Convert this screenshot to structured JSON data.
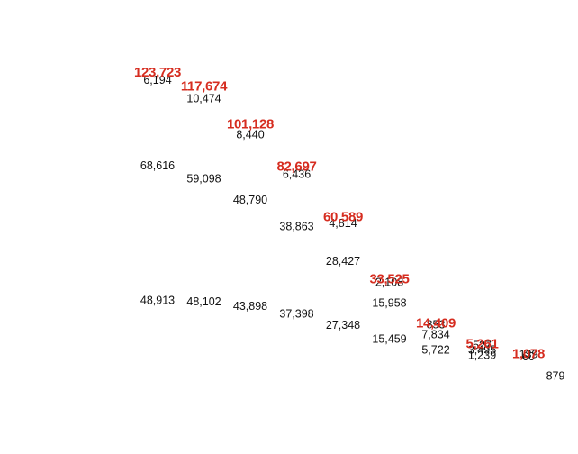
{
  "chart_data": {
    "type": "bar",
    "subtype": "stacked",
    "title": "",
    "xlabel": "",
    "ylabel": "",
    "ylim": [
      0,
      130000
    ],
    "grid": false,
    "legend": "none",
    "visible_bars": false,
    "colors": {
      "total_label": "#d62d20",
      "segment_label": "#111111"
    },
    "columns": [
      {
        "total": "123,723",
        "total_value": 123723,
        "segments": [
          {
            "label": "48,913",
            "value": 48913
          },
          {
            "label": "68,616",
            "value": 68616
          },
          {
            "label": "6,194",
            "value": 6194
          }
        ]
      },
      {
        "total": "117,674",
        "total_value": 117674,
        "segments": [
          {
            "label": "48,102",
            "value": 48102
          },
          {
            "label": "59,098",
            "value": 59098
          },
          {
            "label": "10,474",
            "value": 10474
          }
        ]
      },
      {
        "total": "101,128",
        "total_value": 101128,
        "segments": [
          {
            "label": "43,898",
            "value": 43898
          },
          {
            "label": "48,790",
            "value": 48790
          },
          {
            "label": "8,440",
            "value": 8440
          }
        ]
      },
      {
        "total": "82,697",
        "total_value": 82697,
        "segments": [
          {
            "label": "37,398",
            "value": 37398
          },
          {
            "label": "38,863",
            "value": 38863
          },
          {
            "label": "6,436",
            "value": 6436
          }
        ]
      },
      {
        "total": "60,589",
        "total_value": 60589,
        "segments": [
          {
            "label": "27,348",
            "value": 27348
          },
          {
            "label": "28,427",
            "value": 28427
          },
          {
            "label": "4,814",
            "value": 4814
          }
        ]
      },
      {
        "total": "33,525",
        "total_value": 33525,
        "segments": [
          {
            "label": "15,459",
            "value": 15459
          },
          {
            "label": "15,958",
            "value": 15958
          },
          {
            "label": "2,108",
            "value": 2108
          }
        ]
      },
      {
        "total": "14,409",
        "total_value": 14409,
        "segments": [
          {
            "label": "5,722",
            "value": 5722
          },
          {
            "label": "7,834",
            "value": 7834
          },
          {
            "label": "853",
            "value": 853
          }
        ]
      },
      {
        "total": "5,261",
        "total_value": 5261,
        "segments": [
          {
            "label": "1,239",
            "value": 1239
          },
          {
            "label": "3,495",
            "value": 3495
          },
          {
            "label": "527",
            "value": 527
          }
        ]
      },
      {
        "total": "1,078",
        "total_value": 1078,
        "segments": [
          {
            "label": "60",
            "value": 60
          },
          {
            "label": "879",
            "value": 879
          },
          {
            "label": "139",
            "value": 139
          }
        ]
      }
    ]
  }
}
